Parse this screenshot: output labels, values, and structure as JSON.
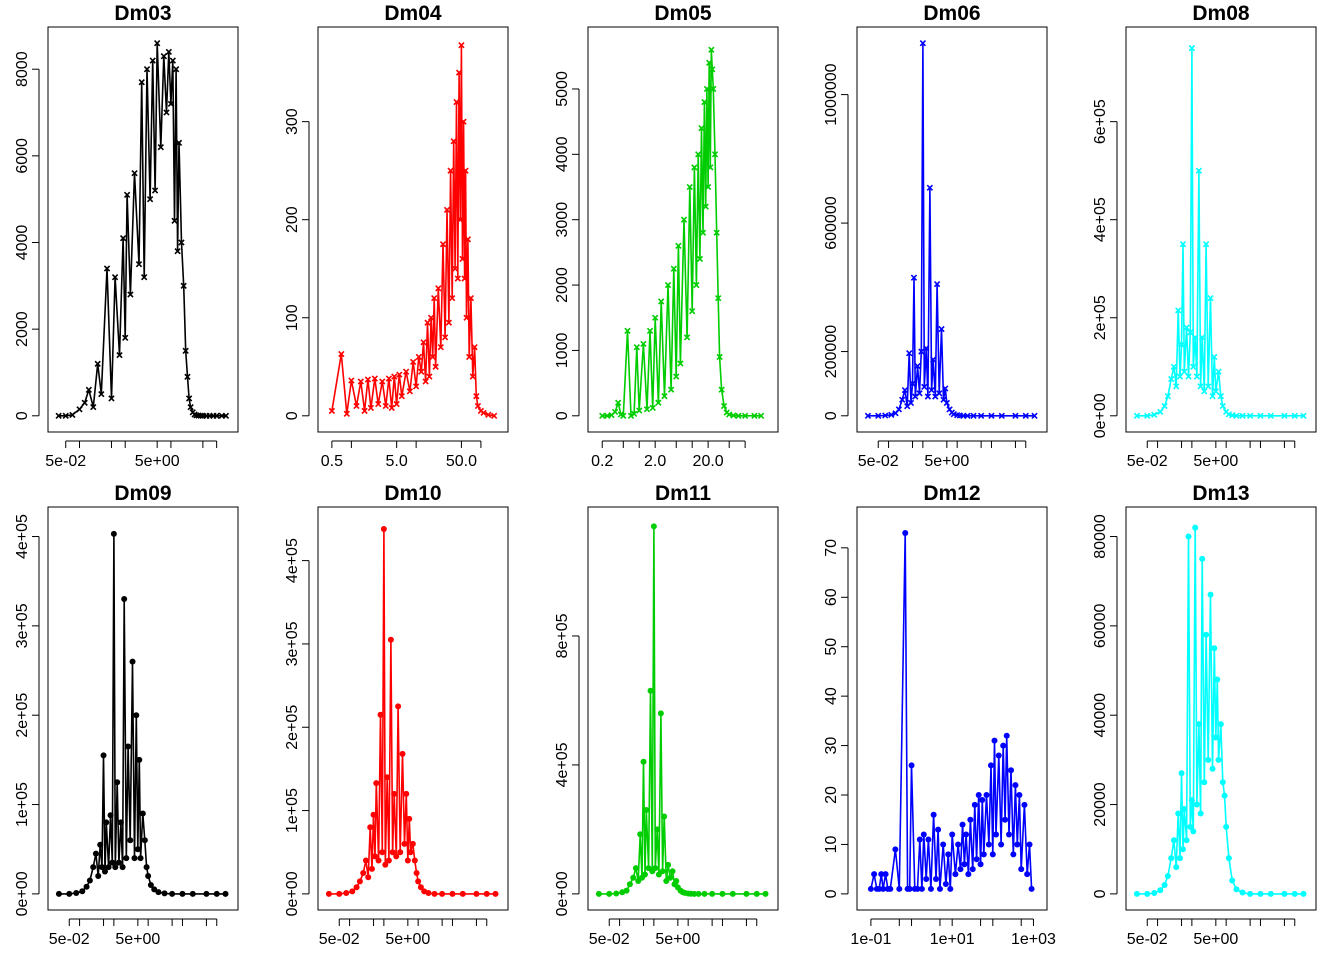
{
  "figure": {
    "rows": 2,
    "cols": 5,
    "background": "#ffffff"
  },
  "chart_data": [
    {
      "type": "line",
      "title": "Dm03",
      "color": "#000000",
      "marker": "x",
      "xscale": "log",
      "xlim": [
        0.03,
        200
      ],
      "ylim": [
        0,
        8600
      ],
      "xticks": [
        0.05,
        5
      ],
      "xtick_labels": [
        "5e-02",
        "5e+00"
      ],
      "yticks": [
        0,
        2000,
        4000,
        6000,
        8000
      ],
      "ytick_labels": [
        "0",
        "2000",
        "4000",
        "6000",
        "8000"
      ],
      "x": [
        0.035,
        0.05,
        0.07,
        0.1,
        0.13,
        0.16,
        0.2,
        0.25,
        0.3,
        0.4,
        0.5,
        0.6,
        0.75,
        0.9,
        1,
        1.1,
        1.3,
        1.6,
        2,
        2.3,
        2.6,
        3,
        3.5,
        4,
        4.5,
        5,
        6,
        7,
        8,
        9,
        10,
        11,
        12,
        13,
        14,
        15,
        17,
        19,
        21,
        23,
        25,
        27,
        30,
        33,
        36,
        40,
        45,
        50,
        60,
        70,
        85,
        100,
        130,
        160
      ],
      "y": [
        0,
        0,
        20,
        150,
        300,
        600,
        200,
        1200,
        500,
        3400,
        400,
        3200,
        1400,
        4100,
        1800,
        5100,
        2800,
        5600,
        3500,
        7700,
        3200,
        8000,
        5000,
        8200,
        5200,
        8600,
        6200,
        8300,
        7000,
        8400,
        7200,
        8200,
        4500,
        8000,
        3800,
        6300,
        4000,
        3000,
        1500,
        900,
        400,
        200,
        80,
        30,
        10,
        5,
        3,
        0,
        0,
        0,
        0,
        0,
        0,
        0
      ]
    },
    {
      "type": "line",
      "title": "Dm04",
      "color": "#ff0000",
      "marker": "x",
      "xscale": "log",
      "xlim": [
        0.4,
        200
      ],
      "ylim": [
        0,
        380
      ],
      "xticks": [
        0.5,
        5,
        50
      ],
      "xtick_labels": [
        "0.5",
        "5.0",
        "50.0"
      ],
      "yticks": [
        0,
        100,
        200,
        300
      ],
      "ytick_labels": [
        "0",
        "100",
        "200",
        "300"
      ],
      "x": [
        0.5,
        0.7,
        0.85,
        1,
        1.2,
        1.4,
        1.6,
        1.8,
        2,
        2.3,
        2.6,
        3,
        3.4,
        3.8,
        4.2,
        4.6,
        5,
        5.5,
        6,
        7,
        8,
        9,
        10,
        11,
        12,
        13,
        14,
        15,
        16,
        17,
        18,
        19,
        20,
        22,
        24,
        26,
        28,
        30,
        32,
        34,
        36,
        38,
        40,
        42,
        44,
        46,
        48,
        50,
        52,
        54,
        56,
        58,
        60,
        63,
        66,
        70,
        75,
        80,
        85,
        90,
        100,
        110,
        130,
        160
      ],
      "y": [
        5,
        63,
        2,
        36,
        10,
        35,
        5,
        37,
        8,
        38,
        12,
        35,
        10,
        38,
        8,
        40,
        12,
        42,
        20,
        45,
        25,
        55,
        30,
        60,
        45,
        75,
        35,
        95,
        40,
        100,
        60,
        120,
        50,
        130,
        70,
        175,
        80,
        210,
        95,
        250,
        120,
        280,
        150,
        320,
        140,
        350,
        200,
        378,
        160,
        300,
        140,
        250,
        100,
        180,
        60,
        120,
        40,
        70,
        20,
        10,
        5,
        3,
        1,
        0
      ]
    },
    {
      "type": "line",
      "title": "Dm05",
      "color": "#00cd00",
      "marker": "x",
      "xscale": "log",
      "xlim": [
        0.15,
        300
      ],
      "ylim": [
        0,
        5700
      ],
      "xticks": [
        0.2,
        2,
        20
      ],
      "xtick_labels": [
        "0.2",
        "2.0",
        "20.0"
      ],
      "yticks": [
        0,
        1000,
        2000,
        3000,
        4000,
        5000
      ],
      "ytick_labels": [
        "0",
        "1000",
        "2000",
        "3000",
        "4000",
        "5000"
      ],
      "x": [
        0.2,
        0.25,
        0.3,
        0.35,
        0.4,
        0.45,
        0.5,
        0.6,
        0.7,
        0.8,
        0.9,
        1,
        1.2,
        1.4,
        1.6,
        1.8,
        2,
        2.3,
        2.6,
        3,
        3.5,
        4,
        4.5,
        5,
        5.5,
        6,
        7,
        8,
        9,
        10,
        11,
        12,
        13,
        14,
        15,
        16,
        17,
        18,
        19,
        20,
        21,
        22,
        23,
        24,
        25,
        27,
        29,
        31,
        33,
        36,
        40,
        45,
        50,
        60,
        75,
        100,
        150,
        200
      ],
      "y": [
        0,
        0,
        10,
        60,
        200,
        20,
        0,
        1300,
        0,
        30,
        1050,
        80,
        1100,
        100,
        1300,
        120,
        1500,
        200,
        1750,
        300,
        2000,
        400,
        2250,
        600,
        2600,
        800,
        3000,
        1200,
        3500,
        1600,
        3800,
        2000,
        4000,
        2400,
        4400,
        2800,
        4800,
        3200,
        5000,
        3500,
        5400,
        3800,
        5600,
        5300,
        5000,
        4000,
        2800,
        1800,
        900,
        400,
        150,
        50,
        20,
        5,
        0,
        0,
        0,
        0
      ]
    },
    {
      "type": "line",
      "title": "Dm06",
      "color": "#0000ff",
      "marker": "x",
      "xscale": "log",
      "xlim": [
        0.02,
        2500
      ],
      "ylim": [
        0,
        1160000
      ],
      "xticks": [
        0.05,
        5
      ],
      "xtick_labels": [
        "5e-02",
        "5e+00"
      ],
      "yticks": [
        0,
        200000,
        600000,
        1000000
      ],
      "ytick_labels": [
        "0",
        "200000",
        "600000",
        "1000000"
      ],
      "x": [
        0.025,
        0.05,
        0.08,
        0.12,
        0.16,
        0.2,
        0.25,
        0.3,
        0.35,
        0.4,
        0.45,
        0.5,
        0.55,
        0.6,
        0.7,
        0.8,
        0.9,
        1,
        1.1,
        1.25,
        1.4,
        1.6,
        1.8,
        2,
        2.3,
        2.6,
        3,
        3.5,
        4,
        4.5,
        5,
        6,
        7,
        8,
        10,
        12,
        15,
        20,
        30,
        50,
        100,
        200,
        500,
        1000,
        1800
      ],
      "y": [
        0,
        0,
        1000,
        3000,
        8000,
        20000,
        50000,
        80000,
        30000,
        195000,
        40000,
        100000,
        430000,
        60000,
        155000,
        70000,
        200000,
        1160000,
        90000,
        210000,
        60000,
        710000,
        80000,
        175000,
        60000,
        410000,
        70000,
        270000,
        50000,
        85000,
        40000,
        20000,
        10000,
        5000,
        2000,
        1000,
        0,
        0,
        0,
        0,
        0,
        0,
        0,
        0,
        0
      ]
    },
    {
      "type": "line",
      "title": "Dm08",
      "color": "#00ffff",
      "marker": "x",
      "xscale": "log",
      "xlim": [
        0.02,
        2500
      ],
      "ylim": [
        0,
        760000
      ],
      "xticks": [
        0.05,
        5
      ],
      "xtick_labels": [
        "5e-02",
        "5e+00"
      ],
      "yticks": [
        0,
        200000,
        400000,
        600000
      ],
      "ytick_labels": [
        "0e+00",
        "2e+05",
        "4e+05",
        "6e+05"
      ],
      "x": [
        0.025,
        0.05,
        0.08,
        0.12,
        0.16,
        0.2,
        0.25,
        0.3,
        0.35,
        0.4,
        0.45,
        0.5,
        0.55,
        0.6,
        0.7,
        0.8,
        0.9,
        1,
        1.1,
        1.25,
        1.4,
        1.6,
        1.8,
        2,
        2.3,
        2.6,
        3,
        3.5,
        4,
        4.5,
        5,
        6,
        7,
        8,
        10,
        12,
        15,
        20,
        30,
        50,
        100,
        200,
        500,
        1000,
        1800
      ],
      "y": [
        0,
        0,
        2000,
        8000,
        20000,
        40000,
        75000,
        100000,
        60000,
        215000,
        80000,
        145000,
        350000,
        90000,
        180000,
        80000,
        170000,
        750000,
        100000,
        160000,
        80000,
        500000,
        60000,
        160000,
        50000,
        350000,
        60000,
        240000,
        40000,
        120000,
        50000,
        90000,
        40000,
        20000,
        8000,
        3000,
        1000,
        0,
        0,
        0,
        0,
        0,
        0,
        0,
        0
      ]
    },
    {
      "type": "line",
      "title": "Dm09",
      "color": "#000000",
      "marker": "dot",
      "xscale": "log",
      "xlim": [
        0.02,
        2500
      ],
      "ylim": [
        0,
        415000
      ],
      "xticks": [
        0.05,
        5
      ],
      "xtick_labels": [
        "5e-02",
        "5e+00"
      ],
      "yticks": [
        0,
        100000,
        200000,
        300000,
        400000
      ],
      "ytick_labels": [
        "0e+00",
        "1e+05",
        "2e+05",
        "3e+05",
        "4e+05"
      ],
      "x": [
        0.025,
        0.05,
        0.08,
        0.12,
        0.16,
        0.2,
        0.25,
        0.3,
        0.35,
        0.4,
        0.45,
        0.5,
        0.55,
        0.6,
        0.7,
        0.8,
        0.9,
        1,
        1.1,
        1.25,
        1.4,
        1.6,
        1.8,
        2,
        2.3,
        2.6,
        3,
        3.5,
        4,
        4.5,
        5,
        5.5,
        6,
        7,
        8,
        9,
        10,
        12,
        15,
        20,
        30,
        50,
        100,
        200,
        500,
        1000,
        1800
      ],
      "y": [
        0,
        0,
        1000,
        3000,
        8000,
        15000,
        30000,
        45000,
        20000,
        55000,
        30000,
        155000,
        25000,
        80000,
        30000,
        88000,
        35000,
        403000,
        30000,
        125000,
        35000,
        80000,
        30000,
        330000,
        40000,
        165000,
        60000,
        260000,
        40000,
        200000,
        50000,
        150000,
        40000,
        90000,
        60000,
        30000,
        20000,
        10000,
        5000,
        2000,
        500,
        0,
        0,
        0,
        0,
        0,
        0
      ]
    },
    {
      "type": "line",
      "title": "Dm10",
      "color": "#ff0000",
      "marker": "dot",
      "xscale": "log",
      "xlim": [
        0.02,
        2500
      ],
      "ylim": [
        0,
        445000
      ],
      "xticks": [
        0.05,
        5
      ],
      "xtick_labels": [
        "5e-02",
        "5e+00"
      ],
      "yticks": [
        0,
        100000,
        200000,
        300000,
        400000
      ],
      "ytick_labels": [
        "0e+00",
        "1e+05",
        "2e+05",
        "3e+05",
        "4e+05"
      ],
      "x": [
        0.025,
        0.05,
        0.08,
        0.12,
        0.16,
        0.2,
        0.25,
        0.3,
        0.35,
        0.4,
        0.45,
        0.5,
        0.55,
        0.6,
        0.7,
        0.8,
        0.9,
        1,
        1.1,
        1.25,
        1.4,
        1.6,
        1.8,
        2,
        2.3,
        2.6,
        3,
        3.5,
        4,
        4.5,
        5,
        5.5,
        6,
        7,
        8,
        9,
        10,
        12,
        15,
        20,
        30,
        50,
        100,
        200,
        500,
        1000,
        1800
      ],
      "y": [
        0,
        0,
        1000,
        3000,
        8000,
        15000,
        25000,
        40000,
        20000,
        80000,
        30000,
        95000,
        45000,
        133000,
        40000,
        215000,
        50000,
        438000,
        35000,
        140000,
        40000,
        305000,
        50000,
        120000,
        45000,
        225000,
        50000,
        168000,
        60000,
        120000,
        40000,
        90000,
        50000,
        60000,
        40000,
        25000,
        15000,
        8000,
        3000,
        1000,
        0,
        0,
        0,
        0,
        0,
        0,
        0
      ]
    },
    {
      "type": "line",
      "title": "Dm11",
      "color": "#00cd00",
      "marker": "dot",
      "xscale": "log",
      "xlim": [
        0.02,
        2500
      ],
      "ylim": [
        0,
        1150000
      ],
      "xticks": [
        0.05,
        5
      ],
      "xtick_labels": [
        "5e-02",
        "5e+00"
      ],
      "yticks": [
        0,
        400000,
        800000
      ],
      "ytick_labels": [
        "0e+00",
        "4e+05",
        "8e+05"
      ],
      "x": [
        0.025,
        0.05,
        0.08,
        0.12,
        0.16,
        0.2,
        0.25,
        0.3,
        0.35,
        0.4,
        0.45,
        0.5,
        0.55,
        0.6,
        0.7,
        0.8,
        0.9,
        1,
        1.1,
        1.25,
        1.4,
        1.6,
        1.8,
        2,
        2.3,
        2.6,
        3,
        3.5,
        4,
        4.5,
        5,
        6,
        7,
        8,
        10,
        12,
        15,
        20,
        30,
        50,
        100,
        200,
        500,
        1000,
        1800
      ],
      "y": [
        0,
        0,
        1000,
        5000,
        10000,
        30000,
        50000,
        80000,
        40000,
        185000,
        50000,
        410000,
        60000,
        260000,
        80000,
        630000,
        70000,
        1140000,
        80000,
        200000,
        60000,
        560000,
        70000,
        240000,
        40000,
        90000,
        50000,
        70000,
        30000,
        40000,
        20000,
        10000,
        5000,
        3000,
        1000,
        500,
        0,
        0,
        0,
        0,
        0,
        0,
        0,
        0,
        0
      ]
    },
    {
      "type": "line",
      "title": "Dm12",
      "color": "#0000ff",
      "marker": "dot",
      "xscale": "log",
      "xlim": [
        0.07,
        1400
      ],
      "ylim": [
        0,
        75
      ],
      "xticks": [
        0.1,
        10,
        1000
      ],
      "xtick_labels": [
        "1e-01",
        "1e+01",
        "1e+03"
      ],
      "yticks": [
        0,
        10,
        20,
        30,
        40,
        50,
        60,
        70
      ],
      "ytick_labels": [
        "0",
        "10",
        "20",
        "30",
        "40",
        "50",
        "60",
        "70"
      ],
      "x": [
        0.1,
        0.12,
        0.14,
        0.16,
        0.18,
        0.2,
        0.23,
        0.26,
        0.3,
        0.4,
        0.5,
        0.7,
        0.8,
        0.9,
        1,
        1.2,
        1.4,
        1.6,
        1.8,
        2,
        2.3,
        2.6,
        3,
        3.5,
        4,
        4.5,
        5,
        6,
        7,
        8,
        9,
        10,
        12,
        14,
        16,
        18,
        20,
        22,
        25,
        28,
        32,
        36,
        40,
        45,
        50,
        55,
        60,
        70,
        80,
        90,
        100,
        110,
        120,
        140,
        160,
        180,
        200,
        220,
        250,
        280,
        320,
        360,
        400,
        450,
        500,
        600,
        700,
        800,
        900
      ],
      "y": [
        1,
        4,
        1,
        1,
        4,
        1,
        4,
        1,
        1,
        9,
        1,
        73,
        1,
        1,
        26,
        1,
        1,
        11,
        1,
        12,
        3,
        11,
        1,
        16,
        3,
        13,
        1,
        10,
        2,
        8,
        1,
        12,
        4,
        10,
        5,
        14,
        6,
        12,
        4,
        15,
        5,
        18,
        7,
        20,
        6,
        19,
        8,
        20,
        10,
        26,
        8,
        31,
        12,
        28,
        10,
        30,
        15,
        32,
        12,
        25,
        8,
        22,
        10,
        20,
        5,
        18,
        4,
        10,
        1
      ]
    },
    {
      "type": "line",
      "title": "Dm13",
      "color": "#00ffff",
      "marker": "dot",
      "xscale": "log",
      "xlim": [
        0.02,
        2500
      ],
      "ylim": [
        0,
        83000
      ],
      "xticks": [
        0.05,
        5
      ],
      "xtick_labels": [
        "5e-02",
        "5e+00"
      ],
      "yticks": [
        0,
        20000,
        40000,
        60000,
        80000
      ],
      "ytick_labels": [
        "0",
        "20000",
        "40000",
        "60000",
        "80000"
      ],
      "x": [
        0.025,
        0.05,
        0.08,
        0.12,
        0.16,
        0.2,
        0.25,
        0.3,
        0.35,
        0.4,
        0.45,
        0.5,
        0.55,
        0.6,
        0.7,
        0.8,
        0.9,
        1,
        1.1,
        1.25,
        1.4,
        1.6,
        1.8,
        2,
        2.3,
        2.6,
        3,
        3.5,
        4,
        4.5,
        5,
        5.5,
        6,
        7,
        8,
        9,
        10,
        12,
        15,
        20,
        30,
        50,
        100,
        200,
        500,
        1000,
        1800
      ],
      "y": [
        0,
        0,
        200,
        800,
        2000,
        4000,
        8000,
        12000,
        6000,
        18000,
        8000,
        27000,
        10000,
        19000,
        12000,
        80000,
        15000,
        21000,
        14000,
        82000,
        20000,
        38000,
        18000,
        75000,
        25000,
        58000,
        30000,
        67000,
        28000,
        55000,
        35000,
        48000,
        30000,
        38000,
        25000,
        22000,
        15000,
        8000,
        3000,
        1000,
        300,
        0,
        0,
        0,
        0,
        0,
        0
      ]
    }
  ]
}
